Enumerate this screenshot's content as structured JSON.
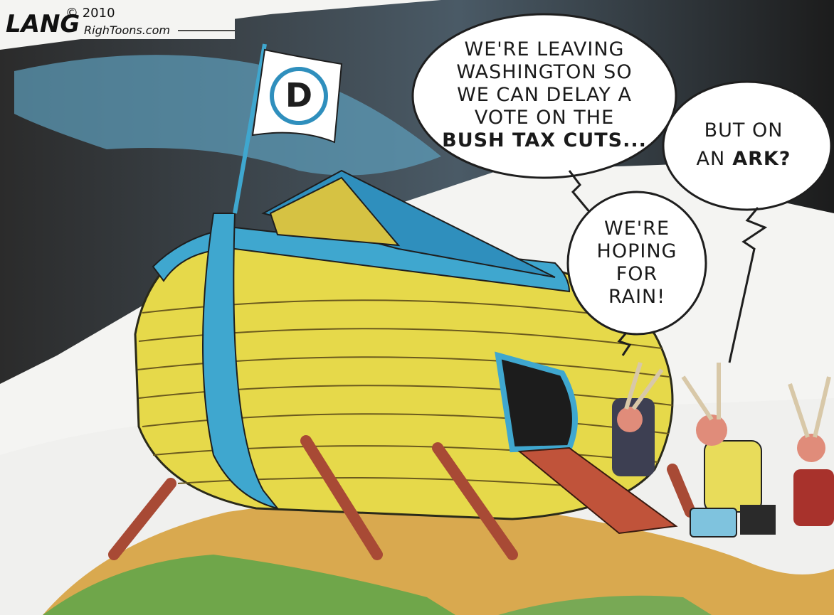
{
  "credit": {
    "signature": "LANG",
    "copyright": "© 2010",
    "site": "RighToons.com"
  },
  "flag": {
    "label": "D"
  },
  "bubbles": {
    "leaving": {
      "lines": [
        "WE'RE LEAVING",
        "WASHINGTON SO",
        "WE CAN DELAY A",
        "VOTE ON THE",
        "BUSH TAX CUTS..."
      ]
    },
    "ark": {
      "line1": "BUT ON",
      "line2_plain": "AN",
      "line2_bold": "ARK?"
    },
    "rain": {
      "lines": [
        "WE'RE",
        "HOPING",
        "FOR",
        "RAIN!"
      ]
    }
  }
}
